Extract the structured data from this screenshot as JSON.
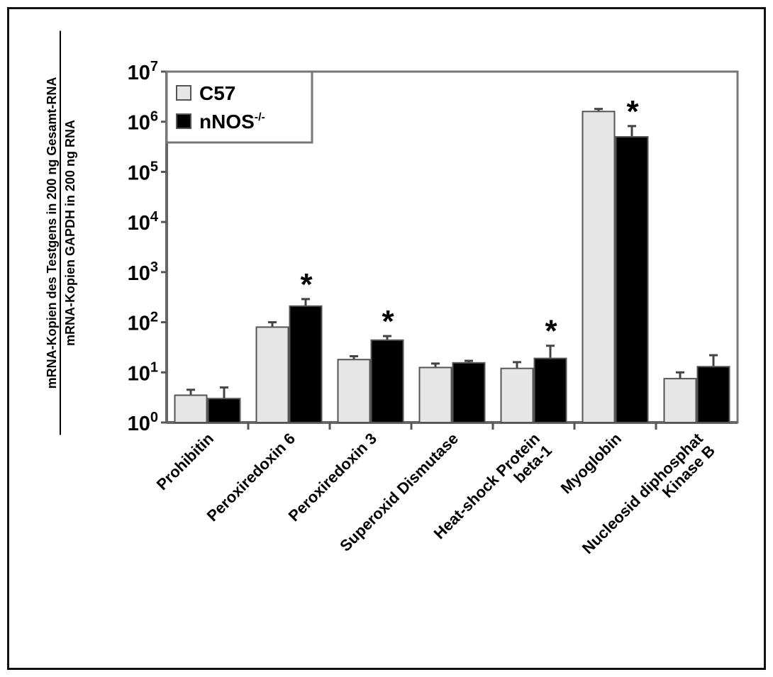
{
  "chart_data": {
    "type": "bar",
    "scale": "log10",
    "ylim": [
      1,
      10000000
    ],
    "y_ticks": [
      {
        "base": "10",
        "exp": "0"
      },
      {
        "base": "10",
        "exp": "1"
      },
      {
        "base": "10",
        "exp": "2"
      },
      {
        "base": "10",
        "exp": "3"
      },
      {
        "base": "10",
        "exp": "4"
      },
      {
        "base": "10",
        "exp": "5"
      },
      {
        "base": "10",
        "exp": "6"
      },
      {
        "base": "10",
        "exp": "7"
      }
    ],
    "ylabel": {
      "numerator": "mRNA-Kopien des Testgens in 200 ng Gesamt-RNA",
      "denominator": "mRNA-Kopien GAPDH in 200 ng RNA"
    },
    "categories": [
      [
        "Prohibitin"
      ],
      [
        "Peroxiredoxin 6"
      ],
      [
        "Peroxiredoxin 3"
      ],
      [
        "Superoxid Dismutase"
      ],
      [
        "Heat-shock Protein",
        "beta-1"
      ],
      [
        "Myoglobin"
      ],
      [
        "Nucleosid diphosphat",
        "Kinase B"
      ]
    ],
    "series": [
      {
        "name": "C57",
        "color": "#e6e6e6",
        "values": [
          3.5,
          80,
          18,
          12.5,
          12,
          1600000,
          7.5
        ],
        "errors": [
          4.5,
          100,
          21,
          15,
          16,
          1800000,
          10
        ]
      },
      {
        "name": "nNOS",
        "name_sup": "-/-",
        "color": "#000000",
        "values": [
          3,
          210,
          44,
          15.5,
          19,
          500000,
          13
        ],
        "errors": [
          5,
          290,
          53,
          17,
          34,
          820000,
          22
        ]
      }
    ],
    "significance": [
      false,
      true,
      true,
      false,
      true,
      true,
      false
    ],
    "significance_symbol": "*",
    "legend_position": "top-left"
  }
}
